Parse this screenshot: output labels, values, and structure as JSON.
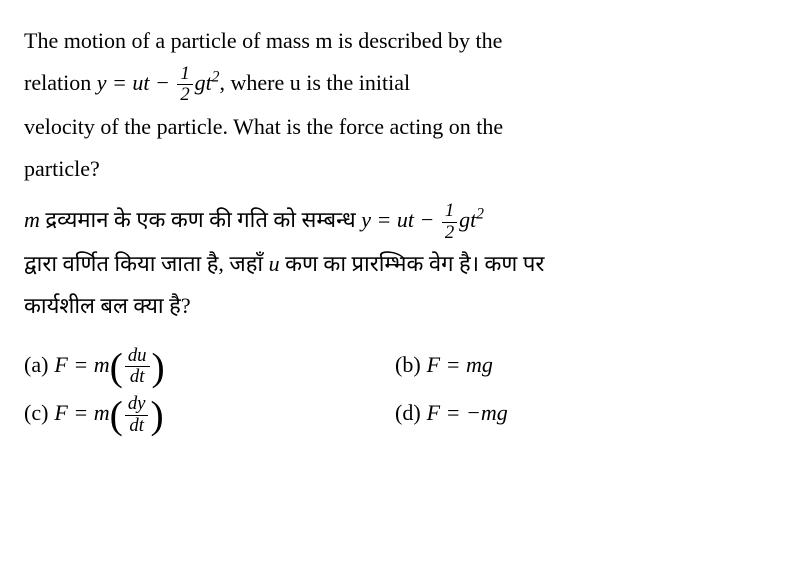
{
  "question": {
    "english_part1": "The motion of a particle of mass m is described by the",
    "english_part2": "relation ",
    "english_part3": ", where u is the initial",
    "english_part4": "velocity of the particle. What is the force acting on the",
    "english_part5": "particle?",
    "hindi_part1": " द्रव्यमान के एक कण की गति को सम्बन्ध ",
    "hindi_part2": "द्वारा वर्णित किया जाता है, जहाँ ",
    "hindi_part3": " कण का प्रारम्भिक वेग है। कण पर",
    "hindi_part4": "कार्यशील बल क्या है?",
    "formula_y": "y",
    "formula_eq": " = ",
    "formula_ut": "ut",
    "formula_minus": " − ",
    "formula_frac_num": "1",
    "formula_frac_den": "2",
    "formula_gt": "gt",
    "formula_sup": "2",
    "formula_m": "m",
    "formula_u": "u"
  },
  "options": {
    "a": {
      "label": "(a) ",
      "F": "F",
      "eq": " = ",
      "m": "m",
      "frac_num": "du",
      "frac_den": "dt"
    },
    "b": {
      "label": "(b) ",
      "F": "F",
      "eq": " = ",
      "mg": "mg"
    },
    "c": {
      "label": "(c) ",
      "F": "F",
      "eq": " = ",
      "m": "m",
      "frac_num": "dy",
      "frac_den": "dt"
    },
    "d": {
      "label": "(d) ",
      "F": "F",
      "eq": " = −",
      "mg": "mg"
    }
  },
  "colors": {
    "text": "#000000",
    "background": "#ffffff"
  },
  "fonts": {
    "body_size": 22,
    "family": "Times New Roman"
  }
}
